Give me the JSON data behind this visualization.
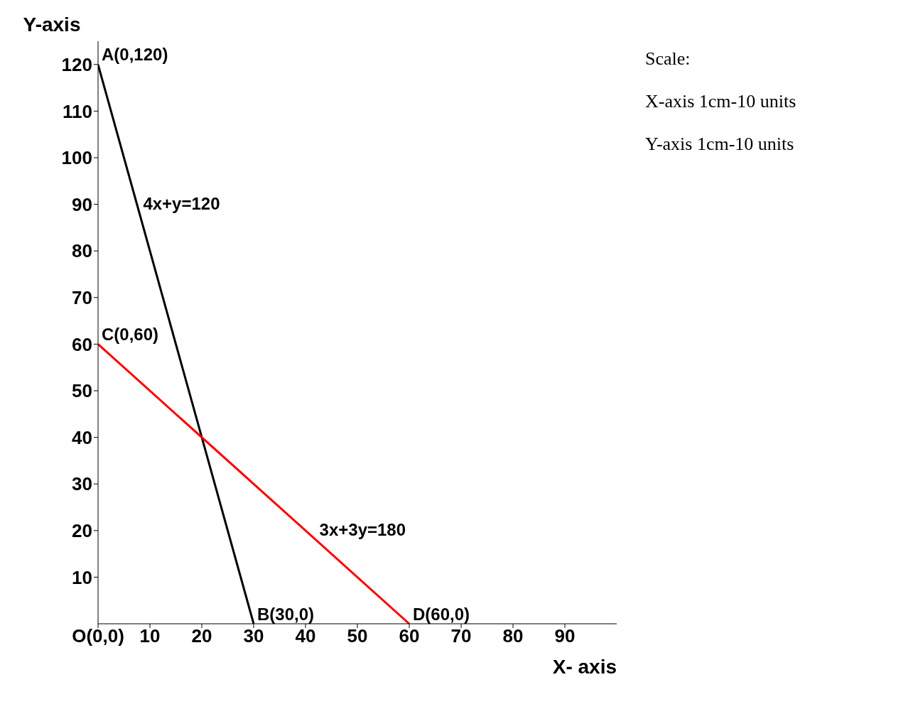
{
  "chart_data": {
    "type": "line",
    "xlabel": "X- axis",
    "ylabel": "Y-axis",
    "xlim": [
      0,
      100
    ],
    "xticks": [
      {
        "value": 0,
        "label": "O(0,0)"
      },
      10,
      20,
      30,
      40,
      50,
      60,
      70,
      80,
      90
    ],
    "ylim": [
      0,
      125
    ],
    "yticks": [
      10,
      20,
      30,
      40,
      50,
      60,
      70,
      80,
      90,
      100,
      110,
      120
    ],
    "marker": "none",
    "line_style": "solid",
    "grid": false,
    "legend": false,
    "series": [
      {
        "color": "#000000",
        "x": [
          0,
          30
        ],
        "values": [
          120,
          0
        ]
      },
      {
        "color": "#ff0000",
        "x": [
          0,
          60
        ],
        "values": [
          60,
          0
        ]
      }
    ],
    "annotations": [
      {
        "text": "A(0,120)",
        "x": 0,
        "y": 120
      },
      {
        "text": "C(0,60)",
        "x": 0,
        "y": 60
      },
      {
        "text": "B(30,0)",
        "x": 30,
        "y": 0
      },
      {
        "text": "D(60,0)",
        "x": 60,
        "y": 0
      },
      {
        "text": "4x+y=120",
        "x": 8,
        "y": 88
      },
      {
        "text": "3x+3y=180",
        "x": 42,
        "y": 18
      },
      "Scale:",
      "X-axis 1cm-10 units",
      "Y-axis 1cm-10 units"
    ]
  }
}
